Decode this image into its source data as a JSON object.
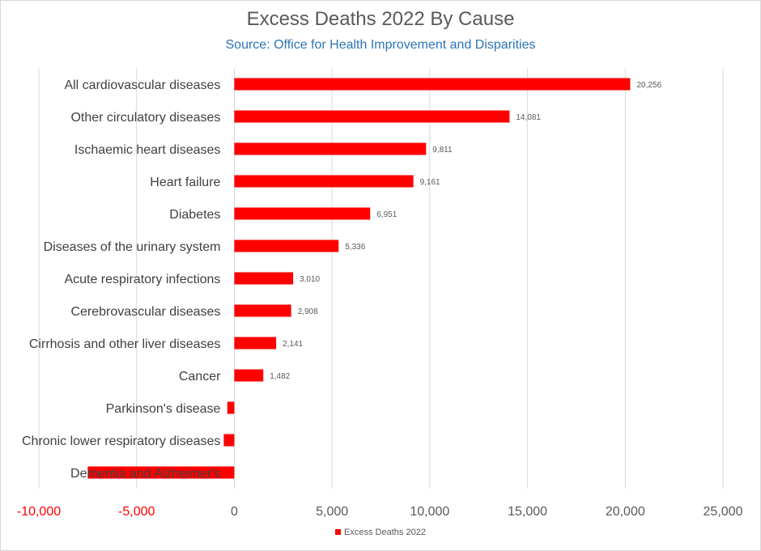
{
  "chart_data": {
    "type": "bar",
    "orientation": "horizontal",
    "title": "Excess Deaths 2022 By Cause",
    "subtitle": "Source: Office for Health Improvement and Disparities",
    "categories": [
      "All cardiovascular diseases",
      "Other circulatory diseases",
      "Ischaemic heart diseases",
      "Heart failure",
      "Diabetes",
      "Diseases of the urinary system",
      "Acute respiratory infections",
      "Cerebrovascular diseases",
      "Cirrhosis and other liver diseases",
      "Cancer",
      "Parkinson's disease",
      "Chronic lower respiratory diseases",
      "Dementia and Alzheimer's"
    ],
    "series": [
      {
        "name": "Excess Deaths 2022",
        "values": [
          20256,
          14081,
          9811,
          9161,
          6951,
          5336,
          3010,
          2908,
          2141,
          1482,
          -360,
          -540,
          -7500
        ],
        "data_labels": [
          "20,256",
          "14,081",
          "9,811",
          "9,161",
          "6,951",
          "5,336",
          "3,010",
          "2,908",
          "2,141",
          "1,482",
          "",
          "",
          ""
        ],
        "color": "#ff0000"
      }
    ],
    "xlim": [
      -10000,
      25000
    ],
    "x_ticks": [
      -10000,
      -5000,
      0,
      5000,
      10000,
      15000,
      20000,
      25000
    ],
    "x_tick_labels": [
      "-10,000",
      "-5,000",
      "0",
      "5,000",
      "10,000",
      "15,000",
      "20,000",
      "25,000"
    ],
    "negative_tick_color": "#ff0000",
    "tick_color": "#595959",
    "grid": "vertical",
    "legend": "bottom",
    "xlabel": "",
    "ylabel": ""
  }
}
